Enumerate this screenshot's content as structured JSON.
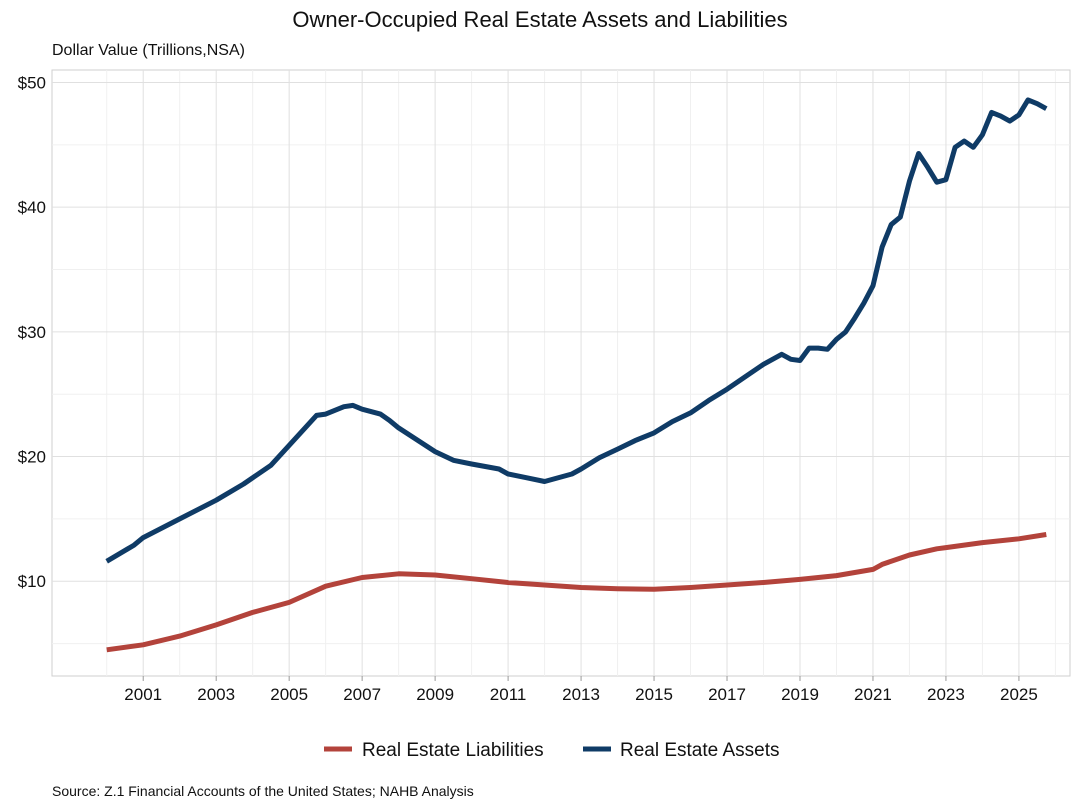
{
  "chart_data": {
    "type": "line",
    "title": "Owner-Occupied Real Estate Assets and Liabilities",
    "ylabel": "Dollar Value (Trillions,NSA)",
    "xlabel": "",
    "source": "Source: Z.1 Financial Accounts of the United States; NAHB Analysis",
    "xlim": [
      1998.5,
      2026.4
    ],
    "ylim": [
      2.4,
      51
    ],
    "x_ticks": [
      2001,
      2003,
      2005,
      2007,
      2009,
      2011,
      2013,
      2015,
      2017,
      2019,
      2021,
      2023,
      2025
    ],
    "x_tick_labels": [
      "2001",
      "2003",
      "2005",
      "2007",
      "2009",
      "2011",
      "2013",
      "2015",
      "2017",
      "2019",
      "2021",
      "2023",
      "2025"
    ],
    "y_ticks": [
      10,
      20,
      30,
      40,
      50
    ],
    "y_tick_labels": [
      "$10",
      "$20",
      "$30",
      "$40",
      "$50"
    ],
    "grid": true,
    "legend_position": "bottom",
    "series": [
      {
        "name": "Real Estate Liabilities",
        "color": "#b3433b",
        "x": [
          2000,
          2001,
          2002,
          2003,
          2004,
          2005,
          2006,
          2007,
          2008,
          2009,
          2010,
          2011,
          2012,
          2013,
          2014,
          2015,
          2016,
          2017,
          2018,
          2019,
          2020,
          2021,
          2021.25,
          2022,
          2022.75,
          2023,
          2024,
          2025,
          2025.75
        ],
        "y": [
          4.5,
          4.9,
          5.6,
          6.5,
          7.5,
          8.3,
          9.6,
          10.3,
          10.6,
          10.5,
          10.2,
          9.9,
          9.7,
          9.5,
          9.4,
          9.35,
          9.5,
          9.7,
          9.9,
          10.15,
          10.45,
          10.95,
          11.35,
          12.1,
          12.6,
          12.7,
          13.1,
          13.4,
          13.75
        ]
      },
      {
        "name": "Real Estate Assets",
        "color": "#0f3b66",
        "x": [
          2000,
          2000.75,
          2001,
          2002,
          2003,
          2003.75,
          2004.5,
          2005,
          2005.75,
          2006,
          2006.5,
          2006.75,
          2007,
          2007.5,
          2007.75,
          2008,
          2009,
          2009.5,
          2010,
          2010.75,
          2011,
          2011.5,
          2012,
          2012.75,
          2013,
          2013.5,
          2014,
          2014.5,
          2015,
          2015.5,
          2016,
          2016.5,
          2017,
          2017.5,
          2018,
          2018.5,
          2018.75,
          2019,
          2019.25,
          2019.5,
          2019.75,
          2020,
          2020.25,
          2020.5,
          2020.75,
          2021,
          2021.25,
          2021.5,
          2021.75,
          2022,
          2022.25,
          2022.5,
          2022.75,
          2023,
          2023.25,
          2023.5,
          2023.75,
          2024,
          2024.25,
          2024.5,
          2024.75,
          2025,
          2025.25,
          2025.5,
          2025.75
        ],
        "y": [
          11.6,
          12.9,
          13.5,
          15.0,
          16.5,
          17.8,
          19.3,
          20.9,
          23.3,
          23.4,
          24.0,
          24.1,
          23.8,
          23.4,
          22.9,
          22.3,
          20.4,
          19.7,
          19.4,
          19.0,
          18.6,
          18.3,
          18.0,
          18.6,
          19.0,
          19.9,
          20.6,
          21.3,
          21.9,
          22.8,
          23.5,
          24.5,
          25.4,
          26.4,
          27.4,
          28.2,
          27.8,
          27.7,
          28.7,
          28.7,
          28.6,
          29.4,
          30.0,
          31.1,
          32.3,
          33.7,
          36.8,
          38.6,
          39.2,
          42.1,
          44.3,
          43.2,
          42.0,
          42.2,
          44.8,
          45.3,
          44.8,
          45.8,
          47.6,
          47.3,
          46.9,
          47.4,
          48.6,
          48.3,
          47.9
        ]
      }
    ]
  }
}
